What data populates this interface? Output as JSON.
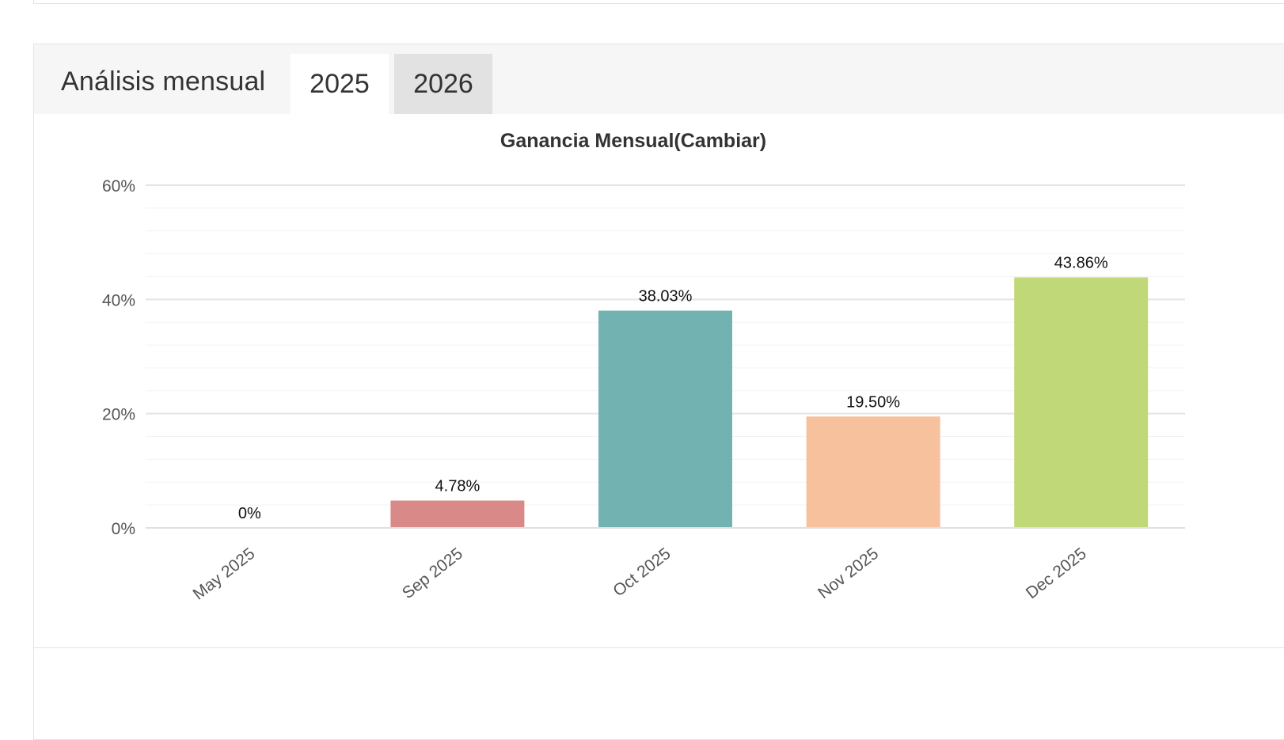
{
  "panel": {
    "title": "Análisis mensual",
    "tabs": [
      {
        "label": "2025",
        "active": true
      },
      {
        "label": "2026",
        "active": false
      }
    ]
  },
  "chart_data": {
    "type": "bar",
    "title": "Ganancia Mensual(Cambiar)",
    "categories": [
      "May 2025",
      "Sep 2025",
      "Oct 2025",
      "Nov 2025",
      "Dec 2025"
    ],
    "values": [
      0,
      4.78,
      38.03,
      19.5,
      43.86
    ],
    "value_labels": [
      "0%",
      "4.78%",
      "38.03%",
      "19.50%",
      "43.86%"
    ],
    "colors": [
      "#d9d9d9",
      "#d98a88",
      "#72b3b2",
      "#f6c19c",
      "#c1d878"
    ],
    "ylim": [
      0,
      60
    ],
    "y_ticks": [
      0,
      20,
      40,
      60
    ],
    "y_tick_labels": [
      "0%",
      "20%",
      "40%",
      "60%"
    ],
    "grid": true,
    "xlabel": "",
    "ylabel": ""
  }
}
